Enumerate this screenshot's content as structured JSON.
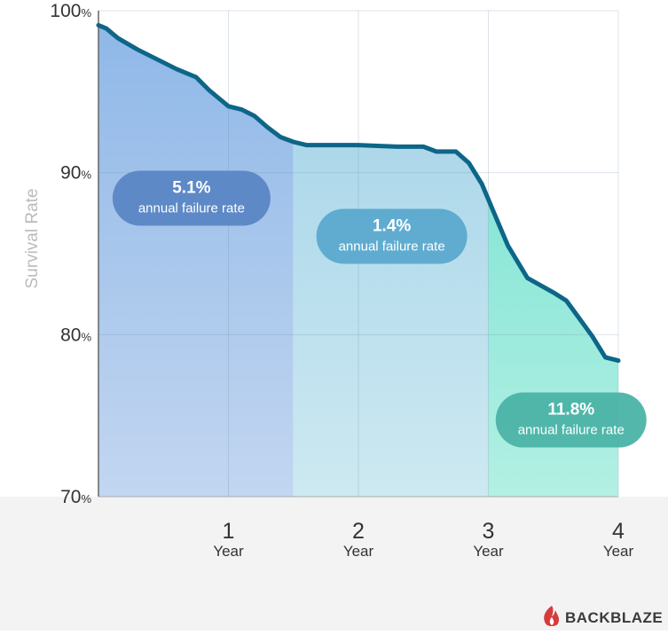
{
  "chart_data": {
    "type": "area",
    "title": "",
    "xlabel": "",
    "ylabel": "Survival Rate",
    "xlim": [
      0,
      4
    ],
    "ylim": [
      70,
      100
    ],
    "y_ticks": [
      {
        "value": 100,
        "num": "100",
        "unit": "%"
      },
      {
        "value": 90,
        "num": "90",
        "unit": "%"
      },
      {
        "value": 80,
        "num": "80",
        "unit": "%"
      },
      {
        "value": 70,
        "num": "70",
        "unit": "%"
      }
    ],
    "x_ticks": [
      {
        "value": 1,
        "num": "1",
        "unit": "Year"
      },
      {
        "value": 2,
        "num": "2",
        "unit": "Year"
      },
      {
        "value": 3,
        "num": "3",
        "unit": "Year"
      },
      {
        "value": 4,
        "num": "4",
        "unit": "Year"
      }
    ],
    "grid": true,
    "series": [
      {
        "x": [
          0,
          0.06,
          0.15,
          0.3,
          0.45,
          0.6,
          0.75,
          0.85,
          1.0,
          1.1,
          1.2,
          1.3,
          1.4,
          1.5,
          1.6,
          1.8,
          2.0,
          2.3,
          2.5,
          2.6,
          2.7,
          2.75,
          2.85,
          2.95,
          3.05,
          3.15,
          3.3,
          3.5,
          3.6,
          3.7,
          3.8,
          3.9,
          4.0
        ],
        "y": [
          99.1,
          98.9,
          98.3,
          97.6,
          97.0,
          96.4,
          95.9,
          95.1,
          94.1,
          93.9,
          93.5,
          92.8,
          92.2,
          91.9,
          91.7,
          91.7,
          91.7,
          91.6,
          91.6,
          91.3,
          91.3,
          91.3,
          90.6,
          89.3,
          87.4,
          85.5,
          83.5,
          82.6,
          82.1,
          81.0,
          79.9,
          78.6,
          78.4
        ]
      }
    ],
    "regions": [
      {
        "x_start": 0,
        "x_end": 1.5,
        "rate": "5.1%",
        "caption": "annual failure rate",
        "fill_top": "#8fb8e8",
        "fill_bottom": "#c2d6f0",
        "pill_color": "#5b86c5"
      },
      {
        "x_start": 1.5,
        "x_end": 3.0,
        "rate": "1.4%",
        "caption": "annual failure rate",
        "fill_top": "#a2d2e8",
        "fill_bottom": "#cde9f1",
        "pill_color": "#5ba9cf"
      },
      {
        "x_start": 3.0,
        "x_end": 4.0,
        "rate": "11.8%",
        "caption": "annual failure rate",
        "fill_top": "#6fe0cf",
        "fill_bottom": "#b2f0e3",
        "pill_color": "#4bb3a6"
      }
    ],
    "line_color": "#0d6688"
  },
  "brand": {
    "name": "BACKBLAZE",
    "icon": "flame-icon",
    "color": "#d63b3b"
  }
}
